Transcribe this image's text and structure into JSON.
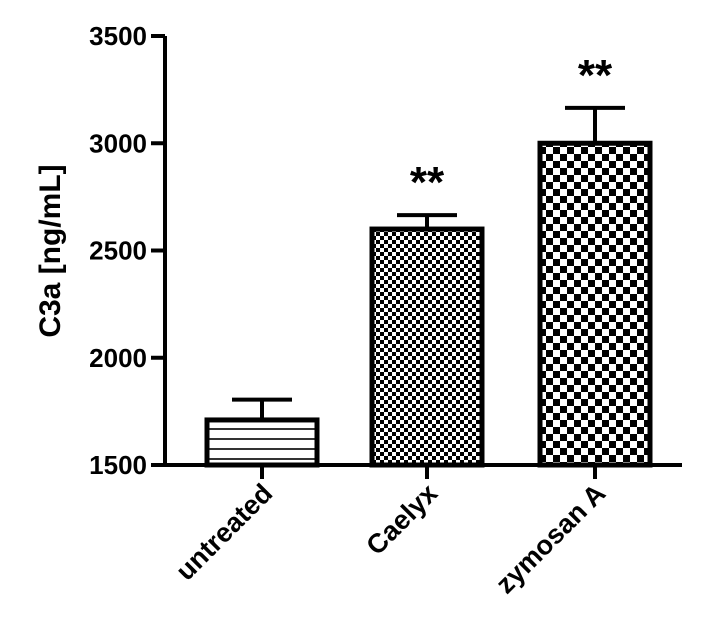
{
  "chart_data": {
    "type": "bar",
    "categories": [
      "untreated",
      "Caelyx",
      "zymosan A"
    ],
    "values": [
      1710,
      2600,
      3000
    ],
    "errors": [
      95,
      65,
      165
    ],
    "significance": [
      "",
      "**",
      "**"
    ],
    "patterns": [
      "horizontal-stripes",
      "fine-checker",
      "coarse-checker"
    ],
    "ylabel": "C3a [ng/mL]",
    "xlabel": "",
    "ylim": [
      1500,
      3500
    ],
    "yticks": [
      1500,
      2000,
      2500,
      3000,
      3500
    ],
    "grid": false,
    "colors": {
      "bar_stroke": "#000000",
      "fill": "#ffffff"
    }
  }
}
